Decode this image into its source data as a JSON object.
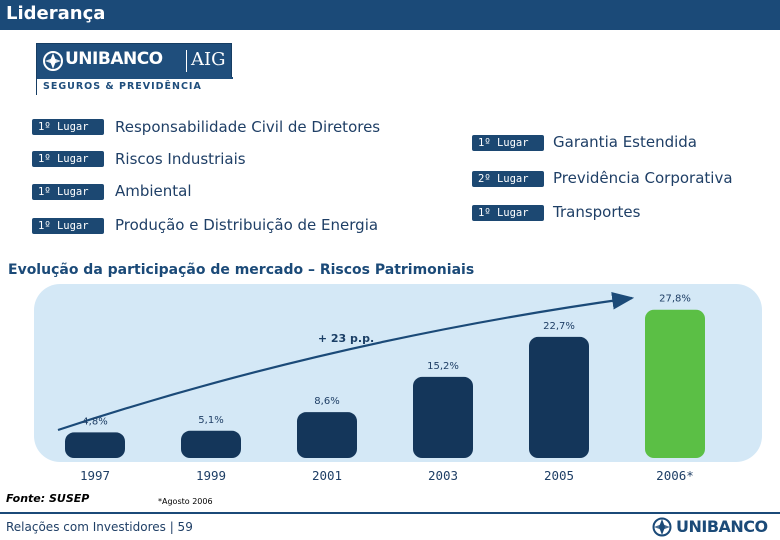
{
  "header": {
    "title": "Liderança"
  },
  "logo": {
    "brand": "UNIBANCO",
    "partner": "AIG",
    "subtitle": "SEGUROS & PREVIDÊNCIA"
  },
  "rankings": {
    "left": [
      {
        "badge": "1º Lugar",
        "label": "Responsabilidade Civil de Diretores"
      },
      {
        "badge": "1º Lugar",
        "label": "Riscos Industriais"
      },
      {
        "badge": "1º Lugar",
        "label": "Ambiental"
      },
      {
        "badge": "1º Lugar",
        "label": "Produção e Distribuição de Energia"
      }
    ],
    "right": [
      {
        "badge": "1º Lugar",
        "label": "Garantia Estendida"
      },
      {
        "badge": "2º Lugar",
        "label": "Previdência Corporativa"
      },
      {
        "badge": "1º Lugar",
        "label": "Transportes"
      }
    ]
  },
  "section": {
    "title": "Evolução da participação de mercado – Riscos Patrimoniais"
  },
  "chart_data": {
    "type": "bar",
    "title": "",
    "xlabel": "",
    "ylabel": "",
    "categories": [
      "1997",
      "1999",
      "2001",
      "2003",
      "2005",
      "2006*"
    ],
    "values": [
      4.8,
      5.1,
      8.6,
      15.2,
      22.7,
      27.8
    ],
    "value_labels": [
      "4,8%",
      "5,1%",
      "8,6%",
      "15,2%",
      "22,7%",
      "27,8%"
    ],
    "ylim": [
      0,
      30
    ],
    "annotation": "+ 23 p.p.",
    "colors": {
      "default": "#14365a",
      "highlight": "#5bbf45",
      "panel": "#d4e8f6"
    },
    "highlight_index": 5,
    "grid": false,
    "legend": "none"
  },
  "source": "Fonte: SUSEP",
  "note": "*Agosto 2006",
  "footer": {
    "text": "Relações com Investidores | 59",
    "brand": "UNIBANCO"
  }
}
